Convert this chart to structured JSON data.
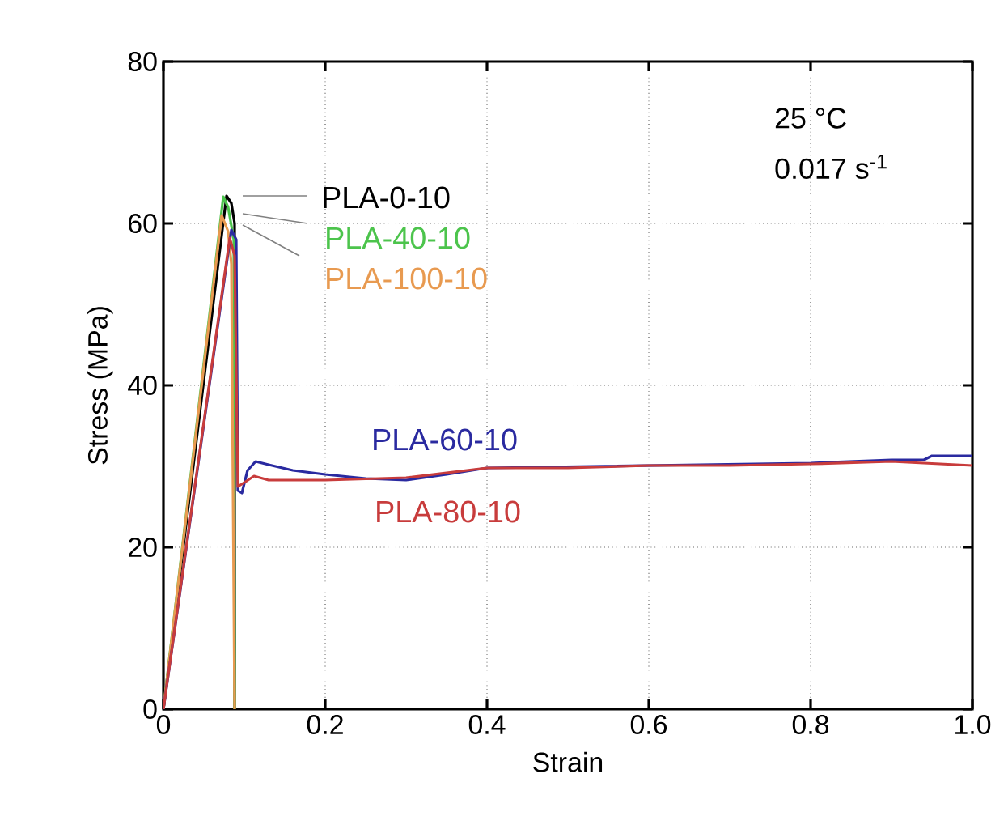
{
  "chart_data": {
    "type": "line",
    "xlabel": "Strain",
    "ylabel": "Stress (MPa)",
    "xlim": [
      0,
      1.0
    ],
    "ylim": [
      0,
      80
    ],
    "xticks": [
      0,
      0.2,
      0.4,
      0.6,
      0.8,
      {
        "value": 1.0,
        "label": "1.0"
      }
    ],
    "yticks": [
      0,
      20,
      40,
      60,
      80
    ],
    "grid": true,
    "legend": false,
    "annotations": [
      "25 °C",
      "0.017 s$^{-1}$"
    ],
    "series": [
      {
        "name": "PLA-0-10",
        "color": "#000000",
        "x": [
          0,
          0.078,
          0.084,
          0.088,
          0.088
        ],
        "values": [
          0,
          63.4,
          62.5,
          60,
          0
        ]
      },
      {
        "name": "PLA-40-10",
        "color": "#4cc44c",
        "x": [
          0,
          0.074,
          0.08,
          0.087,
          0.088
        ],
        "values": [
          0,
          63.3,
          62,
          58,
          0
        ]
      },
      {
        "name": "PLA-100-10",
        "color": "#e89a50",
        "x": [
          0,
          0.072,
          0.08,
          0.084,
          0.088
        ],
        "values": [
          0,
          61,
          59,
          55,
          0
        ]
      },
      {
        "name": "PLA-60-10",
        "color": "#2a2aa0",
        "x": [
          0,
          0.084,
          0.09,
          0.092,
          0.097,
          0.104,
          0.114,
          0.13,
          0.16,
          0.2,
          0.25,
          0.3,
          0.35,
          0.4,
          0.8,
          0.9,
          0.94,
          0.95,
          1.0
        ],
        "values": [
          0,
          59.2,
          58,
          27,
          26.7,
          29.5,
          30.6,
          30.2,
          29.5,
          29.0,
          28.5,
          28.3,
          29.0,
          29.8,
          30.4,
          30.8,
          30.8,
          31.3,
          31.3
        ]
      },
      {
        "name": "PLA-80-10",
        "color": "#c83c3c",
        "x": [
          0,
          0.082,
          0.088,
          0.092,
          0.1,
          0.112,
          0.13,
          0.2,
          0.3,
          0.35,
          0.4,
          0.5,
          0.6,
          0.7,
          0.8,
          0.9,
          1.0
        ],
        "values": [
          0,
          58.2,
          56,
          27.5,
          28,
          28.8,
          28.3,
          28.3,
          28.6,
          29.2,
          29.8,
          29.8,
          30.1,
          30.1,
          30.3,
          30.6,
          30.1
        ]
      }
    ]
  }
}
